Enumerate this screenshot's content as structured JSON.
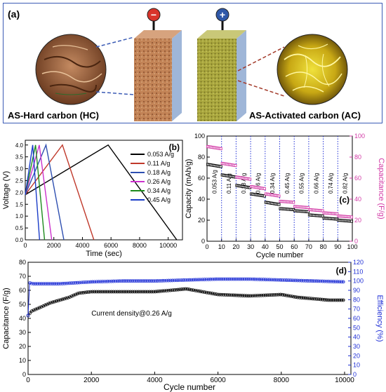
{
  "panel_a": {
    "label": "(a)",
    "left_caption": "AS-Hard carbon (HC)",
    "right_caption": "AS-Activated carbon (AC)",
    "neg_sign": "−",
    "pos_sign": "+",
    "colors": {
      "frame": "#3b5bb5",
      "neg": "#d9342b",
      "pos": "#2f58a8",
      "hc": "#b9764a",
      "ac": "#a8a43a"
    }
  },
  "chart_data": [
    {
      "id": "b",
      "panel_label": "(b)",
      "type": "line",
      "xlabel": "Time (sec)",
      "ylabel": "Voltage (V)",
      "xlim": [
        0,
        11000
      ],
      "ylim": [
        0,
        4.2
      ],
      "xticks": [
        0,
        2000,
        4000,
        6000,
        8000,
        10000
      ],
      "yticks": [
        0.0,
        0.5,
        1.0,
        1.5,
        2.0,
        2.5,
        3.0,
        3.5,
        4.0
      ],
      "legend_position": "right",
      "series": [
        {
          "name": "0.053 A/g",
          "color": "#000000",
          "x": [
            0,
            5800,
            10600
          ],
          "y": [
            1.9,
            4.0,
            0.0
          ]
        },
        {
          "name": "0.11 A/g",
          "color": "#c0392b",
          "x": [
            0,
            2600,
            4800
          ],
          "y": [
            1.9,
            4.0,
            0.0
          ]
        },
        {
          "name": "0.18 A/g",
          "color": "#2e4fb0",
          "x": [
            0,
            1450,
            2700
          ],
          "y": [
            1.9,
            4.0,
            0.0
          ]
        },
        {
          "name": "0.26 A/g",
          "color": "#cc33cc",
          "x": [
            0,
            980,
            1850
          ],
          "y": [
            1.9,
            4.0,
            0.0
          ]
        },
        {
          "name": "0.34 A/g",
          "color": "#1e8a1e",
          "x": [
            0,
            720,
            1350
          ],
          "y": [
            1.9,
            4.0,
            0.0
          ]
        },
        {
          "name": "0.45 A/g",
          "color": "#1a3cc8",
          "x": [
            0,
            520,
            1000
          ],
          "y": [
            1.9,
            4.0,
            0.0
          ]
        }
      ]
    },
    {
      "id": "c",
      "panel_label": "(c)",
      "type": "scatter",
      "xlabel": "Cycle number",
      "ylabel": "Capacity (mAh/g)",
      "y2label": "Capacitance (F/g)",
      "xlim": [
        0,
        100
      ],
      "ylim": [
        0,
        100
      ],
      "y2lim": [
        0,
        100
      ],
      "xticks": [
        0,
        10,
        20,
        30,
        40,
        50,
        60,
        70,
        80,
        90,
        100
      ],
      "yticks": [
        0,
        20,
        40,
        60,
        80,
        100
      ],
      "y2ticks": [
        0,
        20,
        40,
        60,
        80,
        100
      ],
      "rate_labels": [
        "0.053 A/g",
        "0.11 A/g",
        "0.18 A/g",
        "0.26 A/g",
        "0.34 A/g",
        "0.45 A/g",
        "0.55 A/g",
        "0.66 A/g",
        "0.74 A/g",
        "0.82 A/g"
      ],
      "series": [
        {
          "name": "Capacity",
          "axis": "left",
          "color": "#000000",
          "segments": [
            [
              73,
              71
            ],
            [
              63,
              61
            ],
            [
              53,
              51
            ],
            [
              45,
              43
            ],
            [
              37,
              35
            ],
            [
              31,
              30
            ],
            [
              29,
              28
            ],
            [
              25,
              24
            ],
            [
              22,
              21
            ],
            [
              20,
              19
            ]
          ]
        },
        {
          "name": "Capacitance",
          "axis": "right",
          "color": "#d23aa6",
          "segments": [
            [
              90,
              88
            ],
            [
              74,
              72
            ],
            [
              61,
              59
            ],
            [
              52,
              50
            ],
            [
              45,
              43
            ],
            [
              38,
              37
            ],
            [
              33,
              32
            ],
            [
              30,
              29
            ],
            [
              27,
              26
            ],
            [
              24,
              23
            ]
          ]
        }
      ]
    },
    {
      "id": "d",
      "panel_label": "(d)",
      "type": "scatter",
      "xlabel": "Cycle number",
      "ylabel": "Capacitance (F/g)",
      "y2label": "Efficiency (%)",
      "annotation": "Current density@0.26 A/g",
      "xlim": [
        0,
        10200
      ],
      "ylim": [
        0,
        80
      ],
      "y2lim": [
        0,
        120
      ],
      "xticks": [
        0,
        2000,
        4000,
        6000,
        8000,
        10000
      ],
      "yticks": [
        0,
        10,
        20,
        30,
        40,
        50,
        60,
        70,
        80
      ],
      "y2ticks": [
        0,
        10,
        20,
        30,
        40,
        50,
        60,
        70,
        80,
        90,
        100,
        110,
        120
      ],
      "series": [
        {
          "name": "Capacitance",
          "axis": "left",
          "color": "#000000",
          "x": [
            0,
            100,
            200,
            400,
            700,
            1000,
            1300,
            1600,
            2000,
            3000,
            4000,
            4500,
            5000,
            5500,
            6000,
            7000,
            8000,
            8500,
            9000,
            9500,
            10000
          ],
          "y": [
            42,
            45,
            46,
            48,
            51,
            53,
            55,
            58,
            59,
            59,
            59,
            60,
            61,
            59,
            57,
            56,
            57,
            55,
            54,
            53,
            53
          ]
        },
        {
          "name": "Efficiency",
          "axis": "right",
          "color": "#1f2fd6",
          "x": [
            0,
            50,
            150,
            500,
            1000,
            2000,
            3000,
            4000,
            5000,
            6000,
            7000,
            8000,
            9000,
            10000
          ],
          "y": [
            63,
            98,
            97,
            97,
            97,
            99,
            100,
            100,
            101,
            102,
            102,
            101,
            100,
            99
          ]
        }
      ]
    }
  ]
}
